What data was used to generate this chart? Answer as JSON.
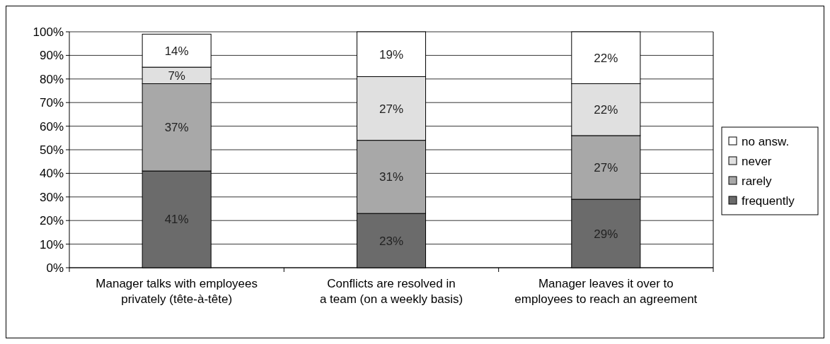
{
  "chart_data": {
    "type": "bar",
    "stacked": true,
    "categories": [
      "Manager talks with employees\nprivately (tête-à-tête)",
      "Conflicts are resolved in\na team (on a weekly basis)",
      "Manager leaves it over to\nemployees to reach an agreement"
    ],
    "series": [
      {
        "name": "frequently",
        "color": "#6b6b6b",
        "values": [
          41,
          23,
          29
        ]
      },
      {
        "name": "rarely",
        "color": "#a8a8a8",
        "values": [
          37,
          31,
          27
        ]
      },
      {
        "name": "never",
        "color": "#e0e0e0",
        "values": [
          7,
          27,
          22
        ]
      },
      {
        "name": "no answ.",
        "color": "#ffffff",
        "values": [
          14,
          19,
          22
        ]
      }
    ],
    "ylim": [
      0,
      100
    ],
    "yticks": [
      {
        "value": 0,
        "label": "0%"
      },
      {
        "value": 10,
        "label": "10%"
      },
      {
        "value": 20,
        "label": "20%"
      },
      {
        "value": 30,
        "label": "30%"
      },
      {
        "value": 40,
        "label": "40%"
      },
      {
        "value": 50,
        "label": "50%"
      },
      {
        "value": 60,
        "label": "60%"
      },
      {
        "value": 70,
        "label": "70%"
      },
      {
        "value": 80,
        "label": "80%"
      },
      {
        "value": 90,
        "label": "90%"
      },
      {
        "value": 100,
        "label": "100%"
      }
    ],
    "value_labels": [
      [
        "41%",
        "23%",
        "29%"
      ],
      [
        "37%",
        "31%",
        "27%"
      ],
      [
        "7%",
        "27%",
        "22%"
      ],
      [
        "14%",
        "19%",
        "22%"
      ]
    ],
    "grid": "y",
    "legend": "right"
  }
}
